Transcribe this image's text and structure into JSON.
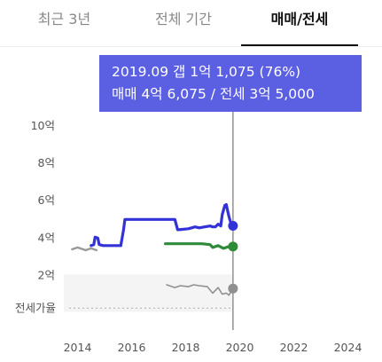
{
  "tabs": [
    {
      "label": "최근 3년",
      "active": false
    },
    {
      "label": "전체 기간",
      "active": false
    },
    {
      "label": "매매/전세",
      "active": true
    }
  ],
  "tooltip": {
    "line1": "2019.09  갭 1억 1,075 (76%)",
    "line2": "매매 4억 6,075 / 전세 3억 5,000"
  },
  "colors": {
    "tooltip_bg": "#5b5fe2",
    "sale": "#3232d8",
    "jeonse": "#2e8b3a",
    "ratio": "#909090",
    "early": "#999999"
  },
  "chart_data": {
    "type": "line",
    "x_ticks": [
      "2014",
      "2016",
      "2018",
      "2020",
      "2022",
      "2024"
    ],
    "y_ticks": [
      "2억",
      "4억",
      "6억",
      "8억",
      "10억"
    ],
    "xlim": [
      2013.7,
      2025.2
    ],
    "ylim": [
      0,
      11
    ],
    "reference_label": "전세가율",
    "cursor": "2019.09",
    "series": [
      {
        "key": "sale",
        "x": [
          2014.5,
          2014.6,
          2014.65,
          2014.75,
          2014.8,
          2014.95,
          2015.6,
          2015.7,
          2015.75,
          2016.2,
          2017.6,
          2017.7,
          2017.75,
          2018.1,
          2018.35,
          2018.5,
          2018.7,
          2018.9,
          2019.0,
          2019.1,
          2019.2,
          2019.3,
          2019.35,
          2019.45,
          2019.5,
          2019.6,
          2019.7,
          2019.75
        ],
        "y": [
          3.55,
          3.6,
          4.0,
          3.95,
          3.6,
          3.55,
          3.55,
          4.4,
          4.95,
          4.95,
          4.95,
          4.4,
          4.4,
          4.45,
          4.55,
          4.5,
          4.55,
          4.6,
          4.55,
          4.55,
          4.7,
          4.6,
          5.2,
          5.7,
          5.75,
          5.1,
          4.6,
          4.61
        ],
        "end": 4.61
      },
      {
        "key": "jeonse",
        "x": [
          2017.25,
          2017.5,
          2018.3,
          2018.6,
          2018.9,
          2019.0,
          2019.2,
          2019.4,
          2019.6,
          2019.75
        ],
        "y": [
          3.65,
          3.65,
          3.65,
          3.65,
          3.6,
          3.45,
          3.55,
          3.4,
          3.5,
          3.5
        ],
        "end": 3.5
      },
      {
        "key": "early",
        "x": [
          2013.8,
          2014.0,
          2014.3,
          2014.5,
          2014.7
        ],
        "y": [
          3.35,
          3.45,
          3.3,
          3.4,
          3.3
        ]
      },
      {
        "key": "ratio",
        "x": [
          2017.3,
          2017.6,
          2017.8,
          2018.1,
          2018.3,
          2018.5,
          2018.8,
          2019.0,
          2019.2,
          2019.35,
          2019.5,
          2019.6,
          2019.75
        ],
        "y": [
          1.45,
          1.3,
          1.4,
          1.35,
          1.45,
          1.4,
          1.35,
          1.0,
          1.3,
          0.95,
          1.0,
          0.9,
          1.25
        ],
        "end": 1.25
      }
    ]
  }
}
